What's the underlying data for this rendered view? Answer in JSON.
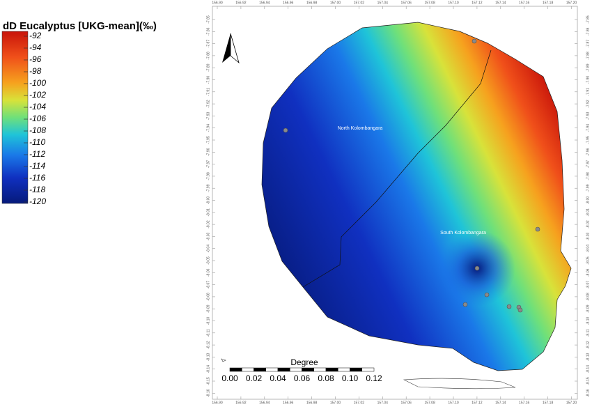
{
  "legend": {
    "title": "dD Eucalyptus [UKG-mean](‰)",
    "ticks": [
      -92,
      -94,
      -96,
      -98,
      -100,
      -102,
      -104,
      -106,
      -108,
      -110,
      -112,
      -114,
      -116,
      -118,
      -120
    ]
  },
  "map": {
    "x_ticks": [
      "156.90",
      "156.92",
      "156.94",
      "156.96",
      "156.98",
      "157.00",
      "157.02",
      "157.04",
      "157.06",
      "157.08",
      "157.10",
      "157.12",
      "157.14",
      "157.16",
      "157.18",
      "157.20"
    ],
    "y_ticks": [
      "-7.85",
      "-7.86",
      "-7.87",
      "-7.88",
      "-7.89",
      "-7.90",
      "-7.91",
      "-7.92",
      "-7.93",
      "-7.94",
      "-7.95",
      "-7.96",
      "-7.97",
      "-7.98",
      "-7.99",
      "-8.00",
      "-8.01",
      "-8.02",
      "-8.03",
      "-8.04",
      "-8.05",
      "-8.06",
      "-8.07",
      "-8.08",
      "-8.09",
      "-8.10",
      "-8.11",
      "-8.12",
      "-8.13",
      "-8.14",
      "-8.15",
      "-8.16"
    ],
    "labels": [
      "North Kolombangara",
      "South Kolombangara"
    ],
    "scale_bar": {
      "title": "Degree",
      "ticks": [
        "0.00",
        "0.02",
        "0.04",
        "0.06",
        "0.08",
        "0.10",
        "0.12"
      ]
    }
  }
}
